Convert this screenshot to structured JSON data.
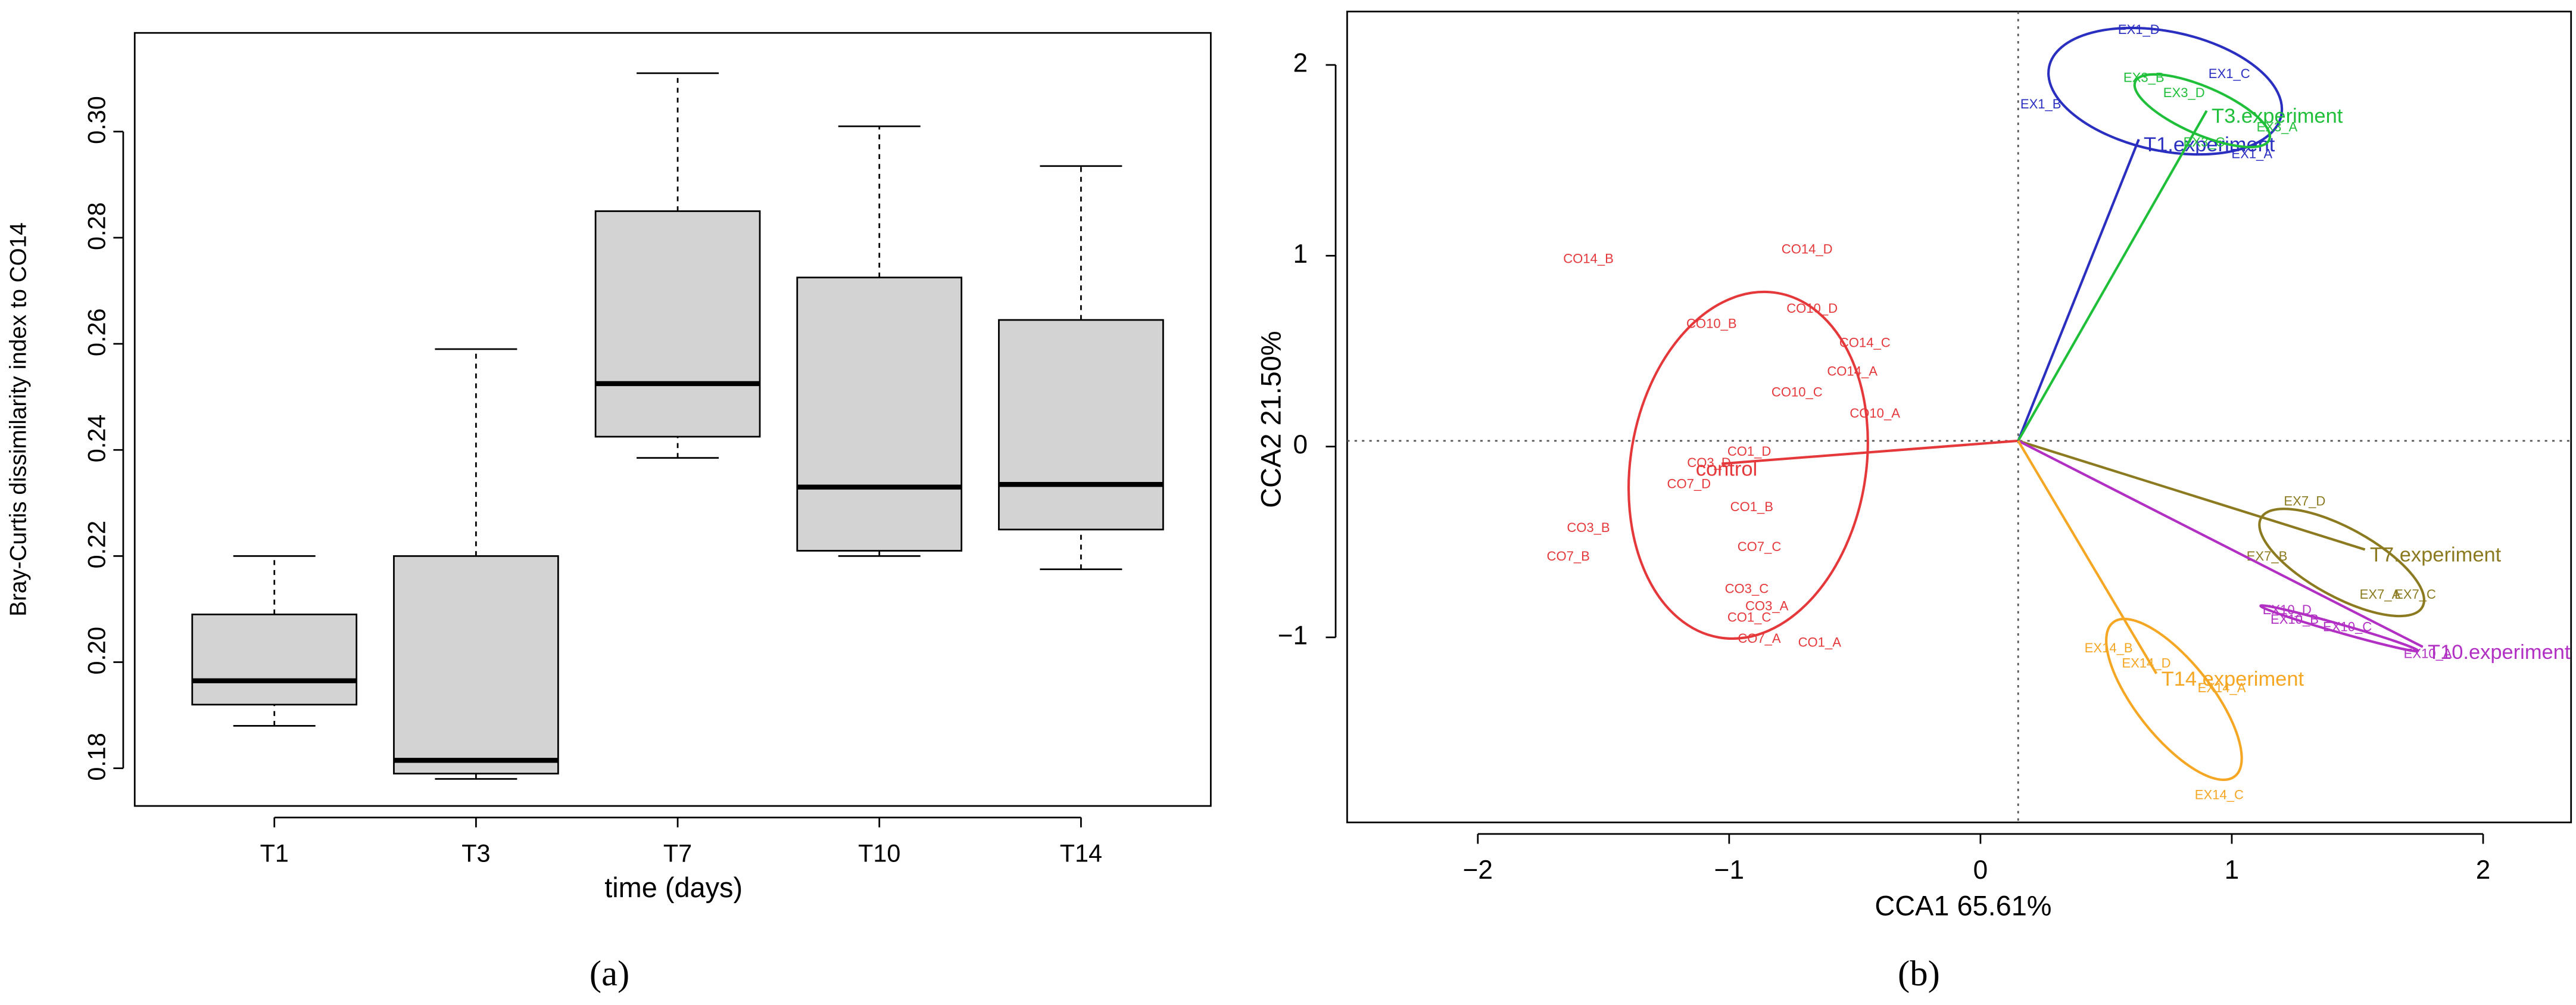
{
  "chart_data": [
    {
      "type": "box",
      "ylabel": "Bray-Curtis dissimilarity index to CO14",
      "xlabel": "time (days)",
      "caption": "(a)",
      "categories": [
        "T1",
        "T3",
        "T7",
        "T10",
        "T14"
      ],
      "values": [
        [
          0.188,
          0.192,
          0.1965,
          0.209,
          0.22
        ],
        [
          0.178,
          0.179,
          0.1815,
          0.22,
          0.259
        ],
        [
          0.2385,
          0.2425,
          0.2525,
          0.285,
          0.311
        ],
        [
          0.22,
          0.221,
          0.233,
          0.2725,
          0.301
        ],
        [
          0.2175,
          0.225,
          0.2335,
          0.2645,
          0.2935
        ]
      ],
      "color": "#d3d3d3",
      "ylim": [
        0.1729,
        0.3186
      ],
      "yticks": [
        {
          "value": 0.18,
          "label": "0.18"
        },
        {
          "value": 0.2,
          "label": "0.20"
        },
        {
          "value": 0.22,
          "label": "0.22"
        },
        {
          "value": 0.24,
          "label": "0.24"
        },
        {
          "value": 0.26,
          "label": "0.26"
        },
        {
          "value": 0.28,
          "label": "0.28"
        },
        {
          "value": 0.3,
          "label": "0.30"
        }
      ]
    },
    {
      "type": "biplot",
      "xlabel": "CCA1 65.61%",
      "ylabel": "CCA2 21.50%",
      "caption": "(b)",
      "xlim": [
        -2.52,
        2.35
      ],
      "ylim": [
        -1.97,
        2.28
      ],
      "xticks": [
        {
          "value": -2,
          "label": "−2"
        },
        {
          "value": -1,
          "label": "−1"
        },
        0,
        1,
        2
      ],
      "yticks": [
        {
          "value": -1,
          "label": "−1"
        },
        0,
        1,
        2
      ],
      "origin": [
        0.15,
        0.03
      ],
      "series": [
        {
          "name": "control",
          "color": "#e5383b",
          "centroid": [
            -1.03,
            -0.09
          ],
          "labels": [
            "CO14_B",
            "CO14_D",
            "CO10_D",
            "CO10_B",
            "CO14_C",
            "CO14_A",
            "CO10_C",
            "CO10_A",
            "CO1_D",
            "CO3_D",
            "CO7_D",
            "CO1_B",
            "CO3_B",
            "CO7_B",
            "CO7_C",
            "CO3_C",
            "CO3_A",
            "CO1_C",
            "CO7_A",
            "CO1_A"
          ],
          "x": [
            -1.56,
            -0.69,
            -0.67,
            -1.07,
            -0.46,
            -0.51,
            -0.73,
            -0.42,
            -0.92,
            -1.08,
            -1.16,
            -0.91,
            -1.56,
            -1.64,
            -0.88,
            -0.93,
            -0.85,
            -0.92,
            -0.88,
            -0.64
          ],
          "y": [
            0.98,
            1.03,
            0.72,
            0.64,
            0.54,
            0.39,
            0.28,
            0.17,
            -0.03,
            -0.09,
            -0.2,
            -0.32,
            -0.43,
            -0.58,
            -0.53,
            -0.75,
            -0.84,
            -0.9,
            -1.01,
            -1.03
          ]
        },
        {
          "name": "T1.experiment",
          "color": "#2b2fc0",
          "centroid": [
            0.63,
            1.61
          ],
          "labels": [
            "EX1_D",
            "EX1_C",
            "EX1_B",
            "EX1_A"
          ],
          "x": [
            0.63,
            0.99,
            0.24,
            1.08
          ],
          "y": [
            2.18,
            1.95,
            1.79,
            1.53
          ]
        },
        {
          "name": "T3.experiment",
          "color": "#1fbf3a",
          "centroid": [
            0.9,
            1.76
          ],
          "labels": [
            "EX3_B",
            "EX3_D",
            "EX3_A",
            "EX3_C"
          ],
          "x": [
            0.65,
            0.81,
            1.18,
            0.89
          ],
          "y": [
            1.93,
            1.85,
            1.67,
            1.59
          ]
        },
        {
          "name": "T7.experiment",
          "color": "#8b7a1f",
          "centroid": [
            1.53,
            -0.54
          ],
          "labels": [
            "EX7_D",
            "EX7_B",
            "EX7_A",
            "EX7_C"
          ],
          "x": [
            1.29,
            1.14,
            1.59,
            1.73
          ],
          "y": [
            -0.29,
            -0.58,
            -0.78,
            -0.78
          ]
        },
        {
          "name": "T10.experiment",
          "color": "#b22fc4",
          "centroid": [
            1.76,
            -1.05
          ],
          "labels": [
            "EX10_D",
            "EX10_B",
            "EX10_C",
            "EX10_A"
          ],
          "x": [
            1.22,
            1.25,
            1.46,
            1.78
          ],
          "y": [
            -0.86,
            -0.91,
            -0.95,
            -1.09
          ]
        },
        {
          "name": "T14.experiment",
          "color": "#f5a623",
          "centroid": [
            0.7,
            -1.19
          ],
          "labels": [
            "EX14_B",
            "EX14_D",
            "EX14_A",
            "EX14_C"
          ],
          "x": [
            0.51,
            0.66,
            0.96,
            0.95
          ],
          "y": [
            -1.06,
            -1.14,
            -1.27,
            -1.83
          ]
        }
      ]
    }
  ]
}
